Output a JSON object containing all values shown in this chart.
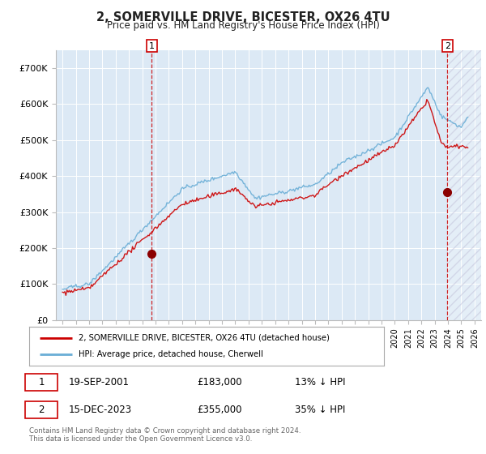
{
  "title": "2, SOMERVILLE DRIVE, BICESTER, OX26 4TU",
  "subtitle": "Price paid vs. HM Land Registry's House Price Index (HPI)",
  "background_color": "#dce9f5",
  "plot_bg_color": "#dce9f5",
  "hpi_color": "#6aaed6",
  "price_color": "#cc0000",
  "ylim": [
    0,
    750000
  ],
  "yticks": [
    0,
    100000,
    200000,
    300000,
    400000,
    500000,
    600000,
    700000
  ],
  "ytick_labels": [
    "£0",
    "£100K",
    "£200K",
    "£300K",
    "£400K",
    "£500K",
    "£600K",
    "£700K"
  ],
  "sale1_date": 2001.72,
  "sale1_price": 183000,
  "sale2_date": 2023.96,
  "sale2_price": 355000,
  "legend_line1": "2, SOMERVILLE DRIVE, BICESTER, OX26 4TU (detached house)",
  "legend_line2": "HPI: Average price, detached house, Cherwell",
  "ann1_label": "1",
  "ann1_date": "19-SEP-2001",
  "ann1_price": "£183,000",
  "ann1_hpi": "13% ↓ HPI",
  "ann2_label": "2",
  "ann2_date": "15-DEC-2023",
  "ann2_price": "£355,000",
  "ann2_hpi": "35% ↓ HPI",
  "footer": "Contains HM Land Registry data © Crown copyright and database right 2024.\nThis data is licensed under the Open Government Licence v3.0.",
  "xlim_start": 1994.5,
  "xlim_end": 2026.5,
  "hatch_start": 2024.0
}
